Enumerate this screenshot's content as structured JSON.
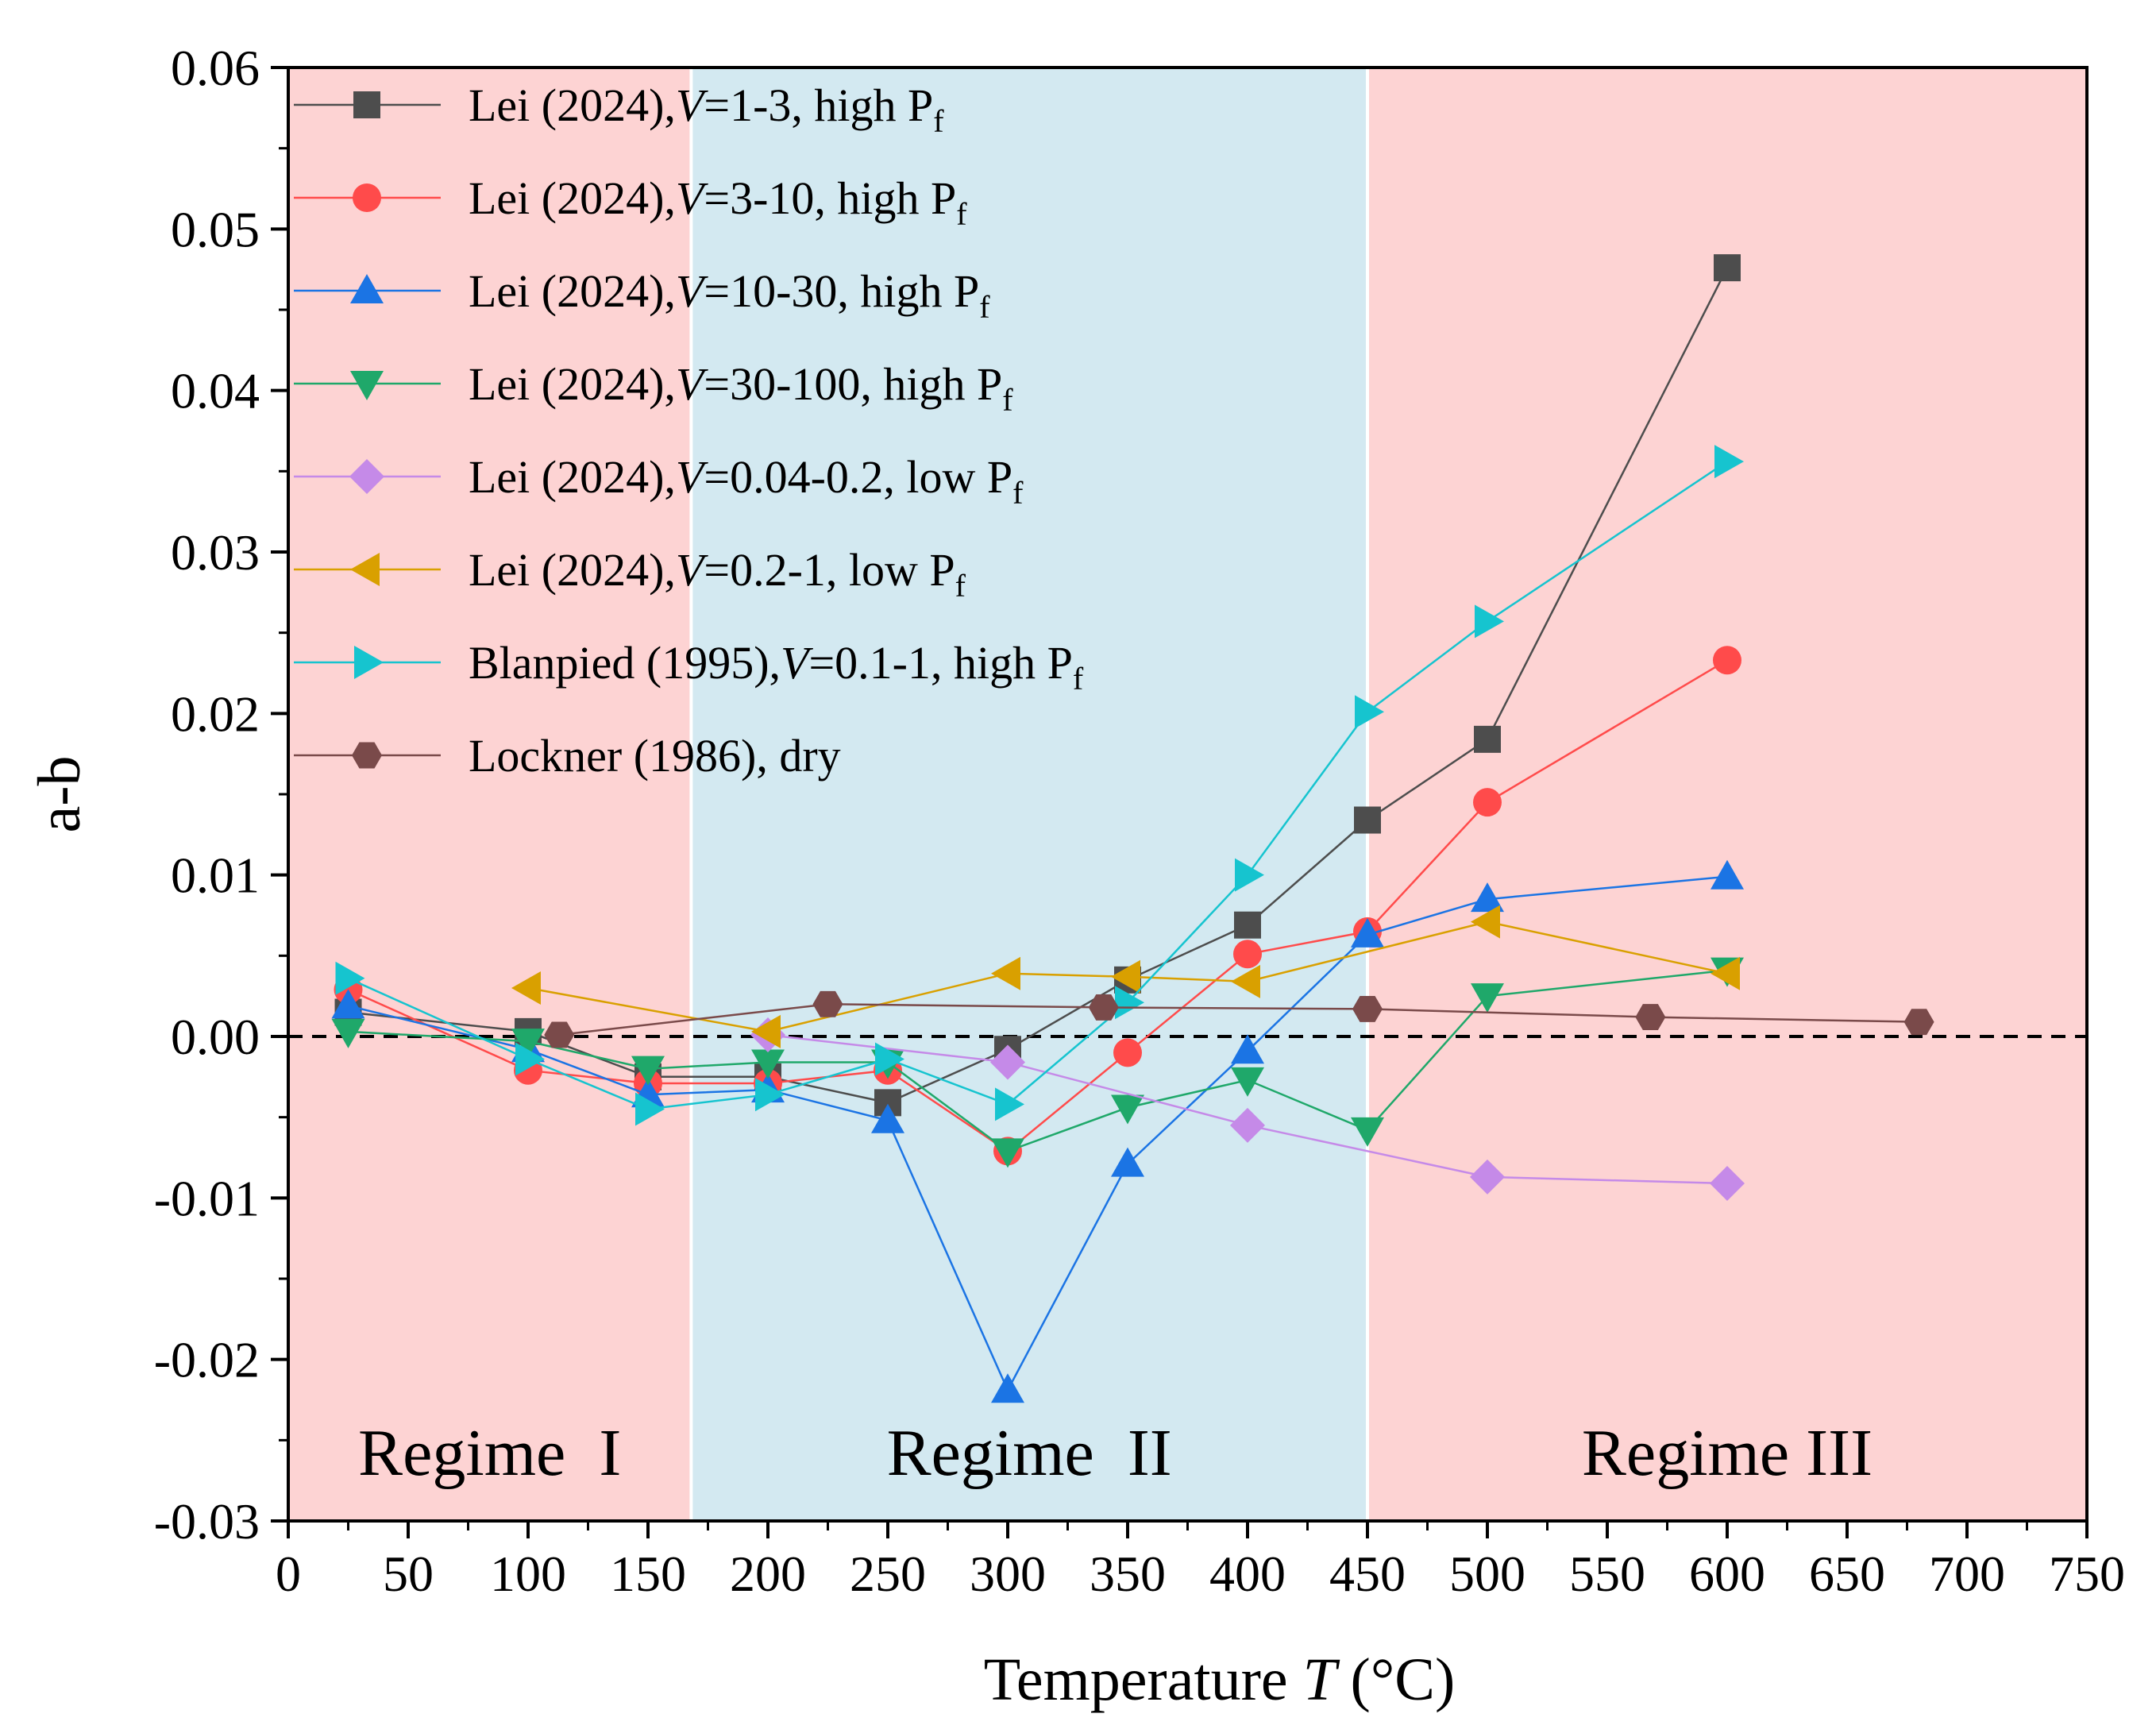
{
  "chart_data": {
    "type": "line",
    "xlabel": "Temperature",
    "xlabel_symbol": "T",
    "xlabel_unit": "(°C)",
    "ylabel": "a-b",
    "xlim": [
      0,
      750
    ],
    "ylim": [
      -0.03,
      0.06
    ],
    "xticks": [
      0,
      50,
      100,
      150,
      200,
      250,
      300,
      350,
      400,
      450,
      500,
      550,
      600,
      650,
      700,
      750
    ],
    "yticks": [
      "-0.03",
      "-0.02",
      "-0.01",
      "0.00",
      "0.01",
      "0.02",
      "0.03",
      "0.04",
      "0.05",
      "0.06"
    ],
    "reference_line": {
      "y": 0,
      "style": "dashed",
      "color": "#000000"
    },
    "legend_position": "top-left",
    "regimes": [
      {
        "label": "Regime  I",
        "x_range": [
          0,
          168
        ],
        "color": "#fdd3d3"
      },
      {
        "label": "Regime  II",
        "x_range": [
          168,
          450
        ],
        "color": "#d3e9f1"
      },
      {
        "label": "Regime III",
        "x_range": [
          450,
          750
        ],
        "color": "#fdd3d3"
      }
    ],
    "series": [
      {
        "name_prefix": "Lei (2024),",
        "v_symbol": "V",
        "name_body": "=1-3, high P",
        "subscript": "f",
        "color": "#4d4d4d",
        "marker": "square",
        "x": [
          25,
          100,
          150,
          200,
          250,
          300,
          350,
          400,
          450,
          500,
          600
        ],
        "values": [
          0.0015,
          0.0003,
          -0.0025,
          -0.0025,
          -0.0041,
          -0.0008,
          0.0035,
          0.0069,
          0.0134,
          0.0184,
          0.0476
        ]
      },
      {
        "name_prefix": "Lei (2024),",
        "v_symbol": "V",
        "name_body": "=3-10, high P",
        "subscript": "f",
        "color": "#ff4b4b",
        "marker": "circle",
        "x": [
          25,
          100,
          150,
          200,
          250,
          300,
          350,
          400,
          450,
          500,
          600
        ],
        "values": [
          0.0029,
          -0.0021,
          -0.0029,
          -0.0029,
          -0.0021,
          -0.0071,
          -0.001,
          0.0051,
          0.0065,
          0.0145,
          0.0233
        ]
      },
      {
        "name_prefix": "Lei (2024),",
        "v_symbol": "V",
        "name_body": "=10-30, high P",
        "subscript": "f",
        "color": "#1b74e4",
        "marker": "triangle-up",
        "x": [
          25,
          100,
          150,
          200,
          250,
          300,
          350,
          400,
          450,
          500,
          600
        ],
        "values": [
          0.0019,
          -0.0008,
          -0.0036,
          -0.0033,
          -0.0052,
          -0.0219,
          -0.0079,
          -0.0009,
          0.0063,
          0.0085,
          0.0099
        ]
      },
      {
        "name_prefix": "Lei (2024),",
        "v_symbol": "V",
        "name_body": "=30-100, high P",
        "subscript": "f",
        "color": "#1fa86a",
        "marker": "triangle-down",
        "x": [
          25,
          100,
          150,
          200,
          250,
          300,
          350,
          400,
          450,
          500,
          600
        ],
        "values": [
          0.0003,
          -0.0003,
          -0.002,
          -0.0016,
          -0.0016,
          -0.0071,
          -0.0044,
          -0.0027,
          -0.0058,
          0.0025,
          0.0041
        ]
      },
      {
        "name_prefix": "Lei (2024),",
        "v_symbol": "V",
        "name_body": "=0.04-0.2, low P",
        "subscript": "f",
        "color": "#c58ae8",
        "marker": "diamond",
        "x": [
          200,
          300,
          400,
          500,
          600
        ],
        "values": [
          0.0001,
          -0.0016,
          -0.0055,
          -0.0087,
          -0.0091
        ]
      },
      {
        "name_prefix": "Lei (2024),",
        "v_symbol": "V",
        "name_body": "=0.2-1, low P",
        "subscript": "f",
        "color": "#d9a000",
        "marker": "triangle-left",
        "x": [
          100,
          200,
          300,
          350,
          400,
          500,
          600
        ],
        "values": [
          0.003,
          0.0003,
          0.0039,
          0.0037,
          0.0034,
          0.0071,
          0.0039
        ]
      },
      {
        "name_prefix": "Blanpied (1995),",
        "v_symbol": "V",
        "name_body": "=0.1-1, high P",
        "subscript": "f",
        "color": "#16c4cf",
        "marker": "triangle-right",
        "x": [
          25,
          100,
          150,
          200,
          250,
          300,
          350,
          400,
          450,
          500,
          600
        ],
        "values": [
          0.0036,
          -0.0014,
          -0.0045,
          -0.0036,
          -0.0014,
          -0.0042,
          0.0021,
          0.01,
          0.0201,
          0.0257,
          0.0356
        ]
      },
      {
        "name_prefix": "Lockner (1986), dry",
        "v_symbol": "",
        "name_body": "",
        "subscript": "",
        "color": "#7a4a4a",
        "marker": "hexagon",
        "x": [
          113,
          225,
          340,
          450,
          568,
          680
        ],
        "values": [
          0.0001,
          0.002,
          0.0018,
          0.0017,
          0.0012,
          0.0009
        ]
      }
    ]
  }
}
